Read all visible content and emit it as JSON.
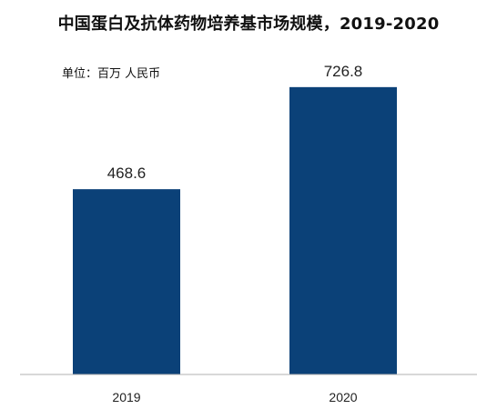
{
  "chart_data": {
    "type": "bar",
    "title": "中国蛋白及抗体药物培养基市场规模，2019-2020",
    "unit_label": "单位：百万 人民币",
    "categories": [
      "2019",
      "2020"
    ],
    "values": [
      468.6,
      726.8
    ],
    "value_labels": [
      "468.6",
      "726.8"
    ],
    "ylim": [
      0,
      800
    ],
    "grid": false,
    "legend": "none",
    "bar_color": "#0b4178",
    "axis_color": "#b0b0b0"
  }
}
